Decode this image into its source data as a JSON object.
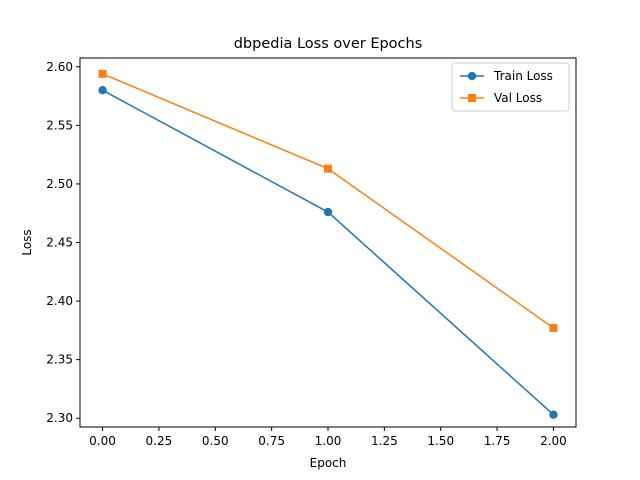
{
  "chart_data": {
    "type": "line",
    "title": "dbpedia Loss over Epochs",
    "xlabel": "Epoch",
    "ylabel": "Loss",
    "x": [
      0,
      1,
      2
    ],
    "xlim": [
      -0.1,
      2.1
    ],
    "ylim": [
      2.2925,
      2.6075
    ],
    "xticks": [
      0.0,
      0.25,
      0.5,
      0.75,
      1.0,
      1.25,
      1.5,
      1.75,
      2.0
    ],
    "xtick_labels": [
      "0.00",
      "0.25",
      "0.50",
      "0.75",
      "1.00",
      "1.25",
      "1.50",
      "1.75",
      "2.00"
    ],
    "yticks": [
      2.3,
      2.35,
      2.4,
      2.45,
      2.5,
      2.55,
      2.6
    ],
    "ytick_labels": [
      "2.30",
      "2.35",
      "2.40",
      "2.45",
      "2.50",
      "2.55",
      "2.60"
    ],
    "grid": false,
    "legend_position": "top-right",
    "series": [
      {
        "name": "Train Loss",
        "values": [
          2.58,
          2.476,
          2.303
        ],
        "color": "#1f77b4",
        "marker": "circle"
      },
      {
        "name": "Val Loss",
        "values": [
          2.594,
          2.513,
          2.377
        ],
        "color": "#ff7f0e",
        "marker": "square"
      }
    ]
  }
}
